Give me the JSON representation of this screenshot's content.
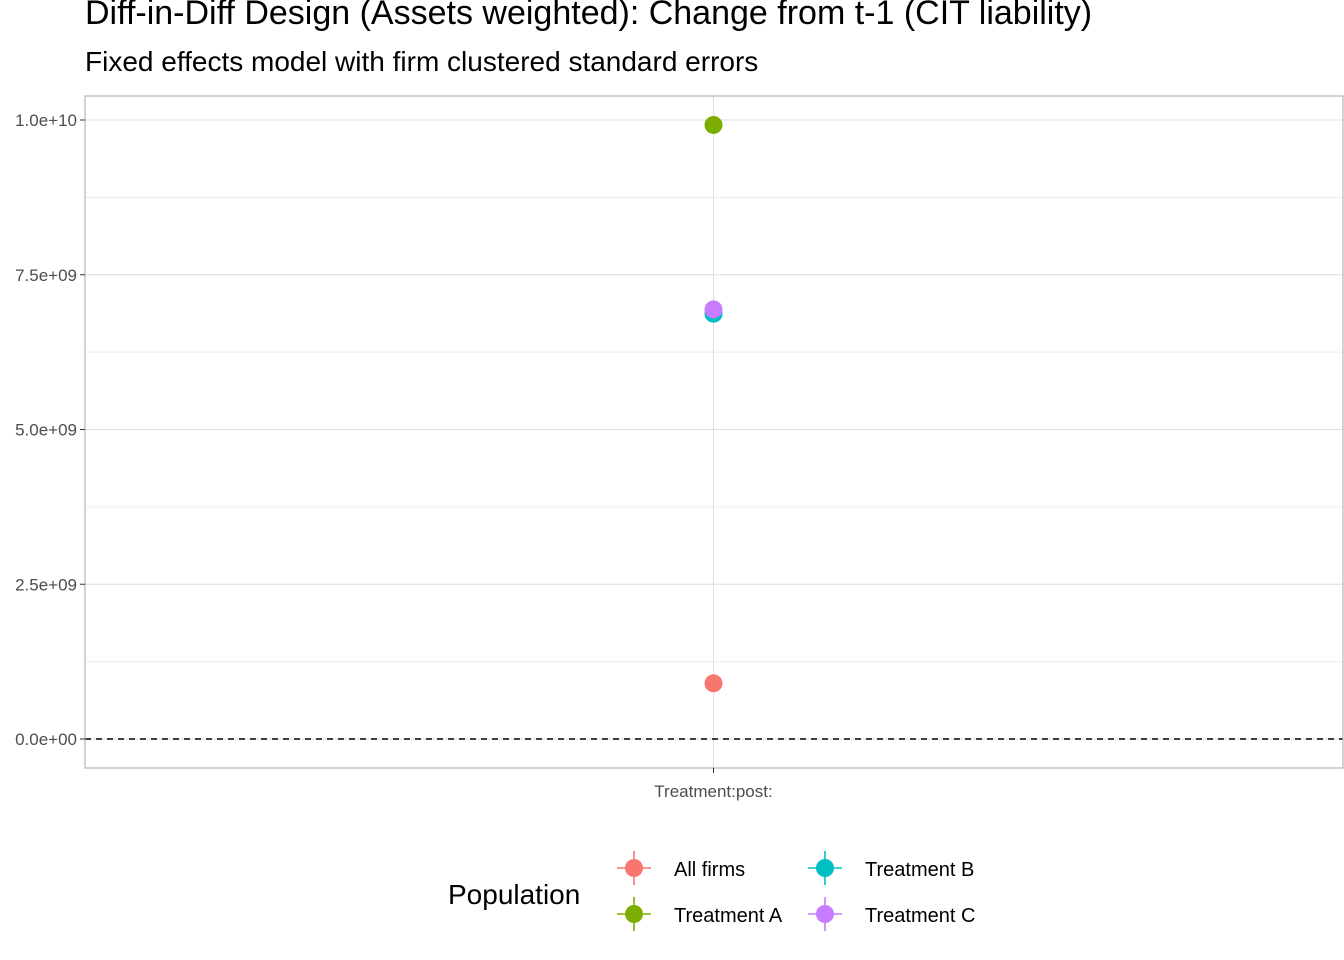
{
  "chart_data": {
    "type": "scatter",
    "title": "Diff-in-Diff Design (Assets weighted): Change from t-1 (CIT liability)",
    "subtitle": "Fixed effects model with firm clustered standard errors",
    "xlabel": "",
    "ylabel": "",
    "categories": [
      "Treatment:post:"
    ],
    "y_ticks": [
      {
        "value": 0,
        "label": "0.0e+00"
      },
      {
        "value": 2500000000,
        "label": "2.5e+09"
      },
      {
        "value": 5000000000,
        "label": "5.0e+09"
      },
      {
        "value": 7500000000,
        "label": "7.5e+09"
      },
      {
        "value": 10000000000,
        "label": "1.0e+10"
      }
    ],
    "ylim": [
      -480000000,
      10400000000
    ],
    "reference_line": {
      "y": 0,
      "style": "dashed"
    },
    "grid": true,
    "series": [
      {
        "name": "All firms",
        "color": "#F8766D",
        "values": [
          900000000
        ]
      },
      {
        "name": "Treatment A",
        "color": "#7CAE00",
        "values": [
          9920000000
        ]
      },
      {
        "name": "Treatment B",
        "color": "#00BFC4",
        "values": [
          6870000000
        ]
      },
      {
        "name": "Treatment C",
        "color": "#C77CFF",
        "values": [
          6940000000
        ]
      }
    ],
    "legend": {
      "title": "Population",
      "position": "bottom"
    }
  }
}
